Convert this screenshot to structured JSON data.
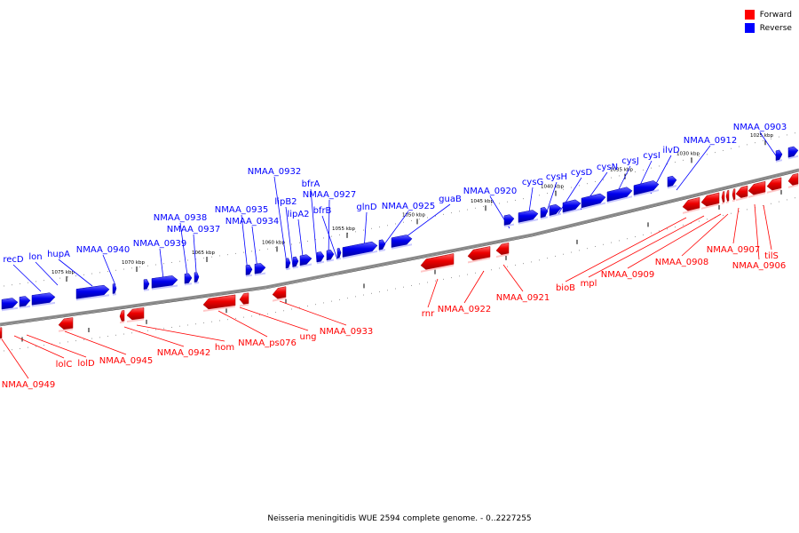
{
  "legend": [
    {
      "label": "Forward",
      "color": "#ff0000"
    },
    {
      "label": "Reverse",
      "color": "#0000ff"
    }
  ],
  "caption": "Neisseria meningitidis WUE 2594 complete genome. - 0..2227255",
  "colors": {
    "forward": "#ff0000",
    "reverse": "#0000ff",
    "backbone": "#888888"
  },
  "tick_labels": [
    "1025 kbp",
    "1030 kbp",
    "1035 kbp",
    "1040 kbp",
    "1045 kbp",
    "1050 kbp",
    "1055 kbp",
    "1060 kbp",
    "1065 kbp",
    "1070 kbp",
    "1075 kbp"
  ],
  "reverse_genes": [
    "recD",
    "lon",
    "hupA",
    "NMAA_0940",
    "NMAA_0939",
    "NMAA_0938",
    "NMAA_0937",
    "NMAA_0935",
    "NMAA_0934",
    "NMAA_0932",
    "lipB2",
    "lipA2",
    "bfrA",
    "NMAA_0927",
    "bfrB",
    "glnD",
    "NMAA_0925",
    "guaB",
    "NMAA_0920",
    "cysG",
    "cysH",
    "cysD",
    "cysN",
    "cysJ",
    "cysI",
    "ilvD",
    "NMAA_0912",
    "NMAA_0903"
  ],
  "forward_genes": [
    "NMAA_0949",
    "lolC",
    "lolD",
    "NMAA_0945",
    "NMAA_0942",
    "hom",
    "NMAA_ps076",
    "ung",
    "NMAA_0933",
    "rnr",
    "NMAA_0922",
    "NMAA_0921",
    "bioB",
    "mpl",
    "NMAA_0909",
    "NMAA_0908",
    "NMAA_0907",
    "NMAA_0906",
    "tilS"
  ]
}
